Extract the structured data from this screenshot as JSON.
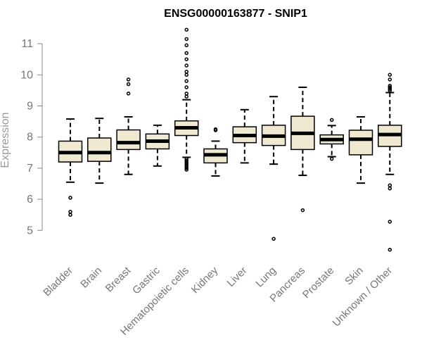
{
  "chart_data": {
    "type": "box",
    "title": "ENSG00000163877 - SNIP1",
    "xlabel": "",
    "ylabel": "Expression",
    "ylim": [
      4.0,
      11.6
    ],
    "yticks": [
      5,
      6,
      7,
      8,
      9,
      10,
      11
    ],
    "grid": false,
    "colors": {
      "box_fill": "#f0e9d2",
      "stroke": "#000000",
      "axis": "#888888"
    },
    "categories": [
      "Bladder",
      "Brain",
      "Breast",
      "Gastric",
      "Hematopoietic cells",
      "Kidney",
      "Liver",
      "Lung",
      "Pancreas",
      "Prostate",
      "Skin",
      "Unknown / Other"
    ],
    "boxes": [
      {
        "name": "Bladder",
        "whisker_low": 6.55,
        "q1": 7.2,
        "median": 7.5,
        "q3": 7.87,
        "whisker_high": 8.58,
        "outliers": [
          6.05,
          5.6,
          5.5
        ]
      },
      {
        "name": "Brain",
        "whisker_low": 6.52,
        "q1": 7.22,
        "median": 7.5,
        "q3": 7.97,
        "whisker_high": 8.6,
        "outliers": []
      },
      {
        "name": "Breast",
        "whisker_low": 6.8,
        "q1": 7.6,
        "median": 7.82,
        "q3": 8.23,
        "whisker_high": 8.65,
        "outliers": [
          9.85,
          9.7,
          9.4
        ]
      },
      {
        "name": "Gastric",
        "whisker_low": 7.07,
        "q1": 7.62,
        "median": 7.87,
        "q3": 8.1,
        "whisker_high": 8.38,
        "outliers": []
      },
      {
        "name": "Hematopoietic cells",
        "whisker_low": 7.35,
        "q1": 8.05,
        "median": 8.3,
        "q3": 8.52,
        "whisker_high": 9.2,
        "outliers": [
          11.45,
          11.15,
          10.95,
          10.7,
          10.5,
          10.3,
          10.1,
          10.0,
          9.8,
          9.6,
          9.4,
          9.3,
          7.3,
          7.25,
          7.2,
          7.15,
          7.1,
          7.05,
          7.0,
          6.95
        ]
      },
      {
        "name": "Kidney",
        "whisker_low": 6.75,
        "q1": 7.17,
        "median": 7.43,
        "q3": 7.62,
        "whisker_high": 7.87,
        "outliers": [
          8.25,
          8.22
        ]
      },
      {
        "name": "Liver",
        "whisker_low": 7.17,
        "q1": 7.82,
        "median": 8.05,
        "q3": 8.33,
        "whisker_high": 8.88,
        "outliers": []
      },
      {
        "name": "Lung",
        "whisker_low": 7.13,
        "q1": 7.73,
        "median": 8.03,
        "q3": 8.38,
        "whisker_high": 9.3,
        "outliers": [
          4.73
        ]
      },
      {
        "name": "Pancreas",
        "whisker_low": 6.77,
        "q1": 7.6,
        "median": 8.12,
        "q3": 8.67,
        "whisker_high": 9.6,
        "outliers": [
          5.65
        ]
      },
      {
        "name": "Prostate",
        "whisker_low": 7.37,
        "q1": 7.78,
        "median": 7.92,
        "q3": 8.07,
        "whisker_high": 8.37,
        "outliers": [
          8.55,
          7.3
        ]
      },
      {
        "name": "Skin",
        "whisker_low": 6.52,
        "q1": 7.43,
        "median": 7.93,
        "q3": 8.22,
        "whisker_high": 8.65,
        "outliers": []
      },
      {
        "name": "Unknown / Other",
        "whisker_low": 6.8,
        "q1": 7.7,
        "median": 8.08,
        "q3": 8.38,
        "whisker_high": 9.43,
        "outliers": [
          10.0,
          9.85,
          9.65,
          9.6,
          9.55,
          9.5,
          6.45,
          6.35,
          5.28,
          4.38
        ]
      }
    ]
  }
}
